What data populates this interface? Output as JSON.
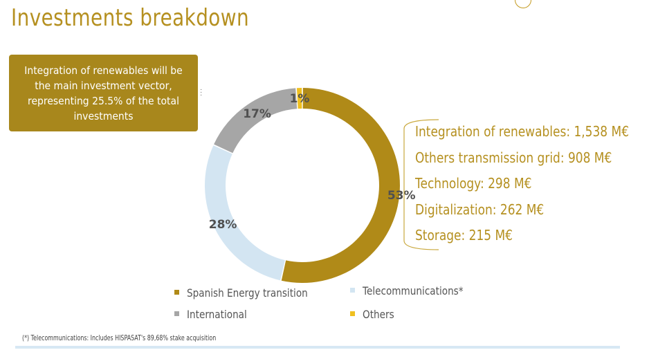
{
  "page": {
    "title": "Investments breakdown",
    "callout": "Integration of renewables will be the main investment vector, representing  25.5% of the total investments",
    "footnote": "(*) Telecommunications: Includes HISPASAT's 89,68% stake acquisition"
  },
  "breakdown": [
    "Integration of renewables: 1,538 M€",
    "Others transmission grid: 908 M€",
    "Technology: 298 M€",
    "Digitalization: 262 M€",
    "Storage: 215 M€"
  ],
  "colors": {
    "title": "#b59020",
    "spanish_energy": "#b08a18",
    "telecom": "#d3e5f2",
    "international": "#a6a6a6",
    "others": "#f0c020",
    "callout_bg": "#a8871c"
  },
  "chart_data": {
    "type": "pie",
    "donut": true,
    "series": [
      {
        "name": "Spanish Energy transition",
        "value": 53,
        "label": "53%",
        "color": "#b08a18"
      },
      {
        "name": "Telecommunications*",
        "value": 28,
        "label": "28%",
        "color": "#d3e5f2"
      },
      {
        "name": "International",
        "value": 17,
        "label": "17%",
        "color": "#a6a6a6"
      },
      {
        "name": "Others",
        "value": 1,
        "label": "1%",
        "color": "#f0c020"
      }
    ],
    "legend": [
      "Spanish Energy transition",
      "Telecommunications*",
      "International",
      "Others"
    ],
    "legend_position": "bottom"
  }
}
